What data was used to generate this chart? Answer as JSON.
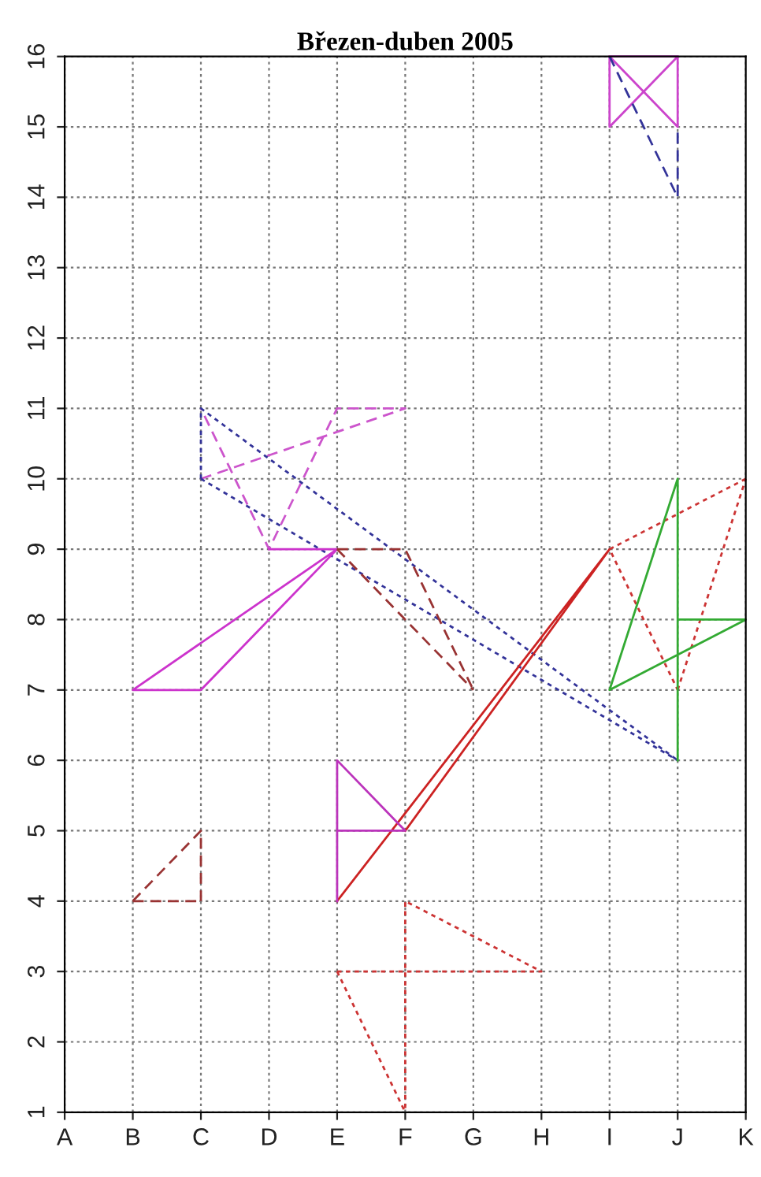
{
  "chart_data": {
    "type": "line",
    "title": "Březen-duben 2005",
    "categories": [
      "A",
      "B",
      "C",
      "D",
      "E",
      "F",
      "G",
      "H",
      "I",
      "J",
      "K"
    ],
    "ylim": [
      1,
      16
    ],
    "yticks": [
      1,
      2,
      3,
      4,
      5,
      6,
      7,
      8,
      9,
      10,
      11,
      12,
      13,
      14,
      15,
      16
    ],
    "grid": true,
    "marker": "none",
    "series": [
      {
        "color": "#cc44cc",
        "line_style": "solid",
        "x": [
          "I",
          "I",
          "J",
          "J",
          "I",
          "J"
        ],
        "values": [
          16,
          15,
          16,
          15,
          16,
          16
        ]
      },
      {
        "color": "#333399",
        "line_style": "dashed",
        "x": [
          "I",
          "J",
          "J"
        ],
        "values": [
          16,
          14,
          15
        ]
      },
      {
        "color": "#cc55cc",
        "line_style": "dashed",
        "x": [
          "C",
          "F",
          "E",
          "D",
          "C"
        ],
        "values": [
          10,
          11,
          11,
          9,
          11
        ]
      },
      {
        "color": "#333399",
        "line_style": "dotted",
        "x": [
          "C",
          "C",
          "J"
        ],
        "values": [
          10,
          11,
          6
        ]
      },
      {
        "color": "#333399",
        "line_style": "dotted",
        "x": [
          "C",
          "J"
        ],
        "values": [
          10,
          6
        ]
      },
      {
        "color": "#cc33cc",
        "line_style": "solid",
        "x": [
          "D",
          "E",
          "B",
          "C",
          "E"
        ],
        "values": [
          9,
          9,
          7,
          7,
          9
        ]
      },
      {
        "color": "#993333",
        "line_style": "dashed",
        "x": [
          "E",
          "F",
          "G"
        ],
        "values": [
          9,
          9,
          7
        ]
      },
      {
        "color": "#993333",
        "line_style": "dashed",
        "x": [
          "E",
          "G"
        ],
        "values": [
          9,
          7
        ]
      },
      {
        "color": "#cc2222",
        "line_style": "solid",
        "x": [
          "F",
          "I",
          "E"
        ],
        "values": [
          5,
          9,
          4
        ]
      },
      {
        "color": "#bb33bb",
        "line_style": "solid",
        "x": [
          "E",
          "E",
          "F",
          "E"
        ],
        "values": [
          4,
          6,
          5,
          5
        ]
      },
      {
        "color": "#cc3333",
        "line_style": "dotted",
        "x": [
          "K",
          "I",
          "J"
        ],
        "values": [
          10,
          9,
          7
        ]
      },
      {
        "color": "#cc3333",
        "line_style": "dotted",
        "x": [
          "J",
          "K"
        ],
        "values": [
          7,
          10
        ]
      },
      {
        "color": "#33aa33",
        "line_style": "solid",
        "x": [
          "J",
          "J",
          "I",
          "K",
          "J"
        ],
        "values": [
          6,
          10,
          7,
          8,
          8
        ]
      },
      {
        "color": "#993333",
        "line_style": "dashed",
        "x": [
          "B",
          "C",
          "C"
        ],
        "values": [
          4,
          5,
          4
        ]
      },
      {
        "color": "#993333",
        "line_style": "dashed",
        "x": [
          "B",
          "C"
        ],
        "values": [
          4,
          4
        ]
      },
      {
        "color": "#cc3333",
        "line_style": "dotted",
        "x": [
          "E",
          "H",
          "F",
          "F"
        ],
        "values": [
          3,
          3,
          4,
          1
        ]
      },
      {
        "color": "#cc3333",
        "line_style": "dotted",
        "x": [
          "E",
          "F"
        ],
        "values": [
          3,
          1
        ]
      }
    ]
  }
}
